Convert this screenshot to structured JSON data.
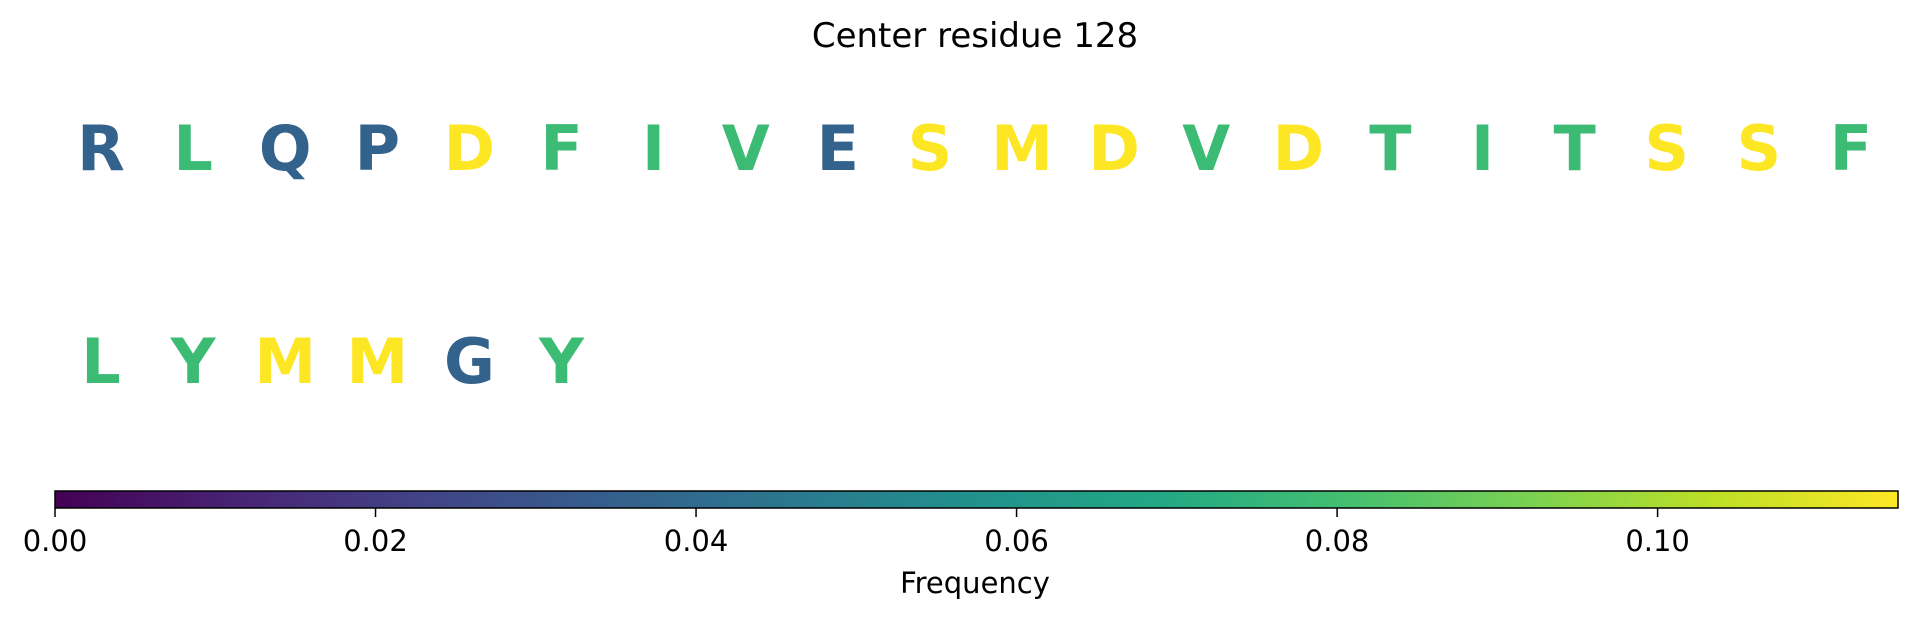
{
  "chart_data": {
    "type": "heatmap",
    "title": "Center residue 128",
    "rows": [
      {
        "residues": [
          "R",
          "L",
          "Q",
          "P",
          "D",
          "F",
          "I",
          "V",
          "E",
          "S",
          "M",
          "D",
          "V",
          "D",
          "T",
          "I",
          "T",
          "S",
          "S",
          "F"
        ],
        "colors": [
          "#33638d",
          "#3cbb75",
          "#33638d",
          "#33638d",
          "#fde725",
          "#3cbb75",
          "#3cbb75",
          "#3cbb75",
          "#33638d",
          "#fde725",
          "#fde725",
          "#fde725",
          "#3cbb75",
          "#fde725",
          "#3cbb75",
          "#3cbb75",
          "#3cbb75",
          "#fde725",
          "#fde725",
          "#3cbb75"
        ]
      },
      {
        "residues": [
          "L",
          "Y",
          "M",
          "M",
          "G",
          "Y"
        ],
        "colors": [
          "#3cbb75",
          "#3cbb75",
          "#fde725",
          "#fde725",
          "#33638d",
          "#3cbb75"
        ]
      }
    ],
    "colorbar": {
      "colormap": "viridis",
      "label": "Frequency",
      "range": [
        0,
        0.115
      ],
      "ticks": [
        0.0,
        0.02,
        0.04,
        0.06,
        0.08,
        0.1
      ],
      "tick_labels": [
        "0.00",
        "0.02",
        "0.04",
        "0.06",
        "0.08",
        "0.10"
      ]
    }
  }
}
